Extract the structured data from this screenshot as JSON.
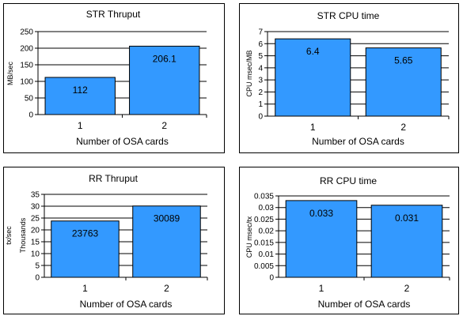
{
  "chart_data": [
    {
      "type": "bar",
      "title": "STR Thruput",
      "ylabel": [
        "MB/sec"
      ],
      "xlabel": "Number of OSA cards",
      "categories": [
        "1",
        "2"
      ],
      "values": [
        112,
        206.1
      ],
      "value_labels": [
        "112",
        "206.1"
      ],
      "ylim": [
        0,
        250
      ],
      "yticks": [
        "0",
        "50",
        "100",
        "150",
        "200",
        "250"
      ],
      "grid": true,
      "bar_color": "#3399ff"
    },
    {
      "type": "bar",
      "title": "STR CPU time",
      "ylabel": [
        "CPU msec/MB"
      ],
      "xlabel": "Number of OSA cards",
      "categories": [
        "1",
        "2"
      ],
      "values": [
        6.4,
        5.65
      ],
      "value_labels": [
        "6.4",
        "5.65"
      ],
      "ylim": [
        0,
        7
      ],
      "yticks": [
        "0",
        "1",
        "2",
        "3",
        "4",
        "5",
        "6",
        "7"
      ],
      "grid": true,
      "bar_color": "#3399ff"
    },
    {
      "type": "bar",
      "title": "RR Thruput",
      "ylabel": [
        "tx/sec",
        "Thousands"
      ],
      "xlabel": "Number of OSA cards",
      "categories": [
        "1",
        "2"
      ],
      "values": [
        23.763,
        30.089
      ],
      "value_labels": [
        "23763",
        "30089"
      ],
      "ylim": [
        0,
        35
      ],
      "yticks": [
        "0",
        "5",
        "10",
        "15",
        "20",
        "25",
        "30",
        "35"
      ],
      "grid": true,
      "bar_color": "#3399ff"
    },
    {
      "type": "bar",
      "title": "RR CPU time",
      "ylabel": [
        "CPU msec/tx"
      ],
      "xlabel": "Number of OSA cards",
      "categories": [
        "1",
        "2"
      ],
      "values": [
        0.033,
        0.031
      ],
      "value_labels": [
        "0.033",
        "0.031"
      ],
      "ylim": [
        0,
        0.035
      ],
      "yticks": [
        "0",
        "0.005",
        "0.01",
        "0.015",
        "0.02",
        "0.025",
        "0.03",
        "0.035"
      ],
      "grid": true,
      "bar_color": "#3399ff"
    }
  ]
}
